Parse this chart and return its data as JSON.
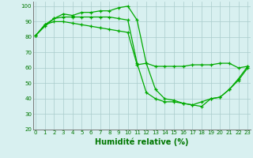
{
  "xlabel": "Humidité relative (%)",
  "xlabel_fontsize": 7,
  "xlabel_color": "#007700",
  "background_color": "#d8f0f0",
  "grid_color": "#aacccc",
  "line_color": "#00aa00",
  "marker": "+",
  "markersize": 3,
  "linewidth": 0.9,
  "ylim": [
    20,
    103
  ],
  "xlim": [
    -0.3,
    23.3
  ],
  "yticks": [
    20,
    30,
    40,
    50,
    60,
    70,
    80,
    90,
    100
  ],
  "xticks": [
    0,
    1,
    2,
    3,
    4,
    5,
    6,
    7,
    8,
    9,
    10,
    11,
    12,
    13,
    14,
    15,
    16,
    17,
    18,
    19,
    20,
    21,
    22,
    23
  ],
  "tick_fontsize": 5,
  "series": [
    [
      81,
      88,
      90,
      90,
      89,
      88,
      87,
      86,
      85,
      84,
      83,
      62,
      63,
      61,
      61,
      61,
      61,
      62,
      62,
      62,
      63,
      63,
      60,
      61
    ],
    [
      81,
      88,
      92,
      95,
      94,
      96,
      96,
      97,
      97,
      99,
      100,
      91,
      63,
      46,
      40,
      39,
      37,
      36,
      35,
      40,
      41,
      46,
      53,
      61
    ],
    [
      81,
      87,
      92,
      93,
      93,
      93,
      93,
      93,
      93,
      92,
      91,
      63,
      44,
      40,
      38,
      38,
      37,
      36,
      38,
      40,
      41,
      46,
      52,
      60
    ]
  ]
}
